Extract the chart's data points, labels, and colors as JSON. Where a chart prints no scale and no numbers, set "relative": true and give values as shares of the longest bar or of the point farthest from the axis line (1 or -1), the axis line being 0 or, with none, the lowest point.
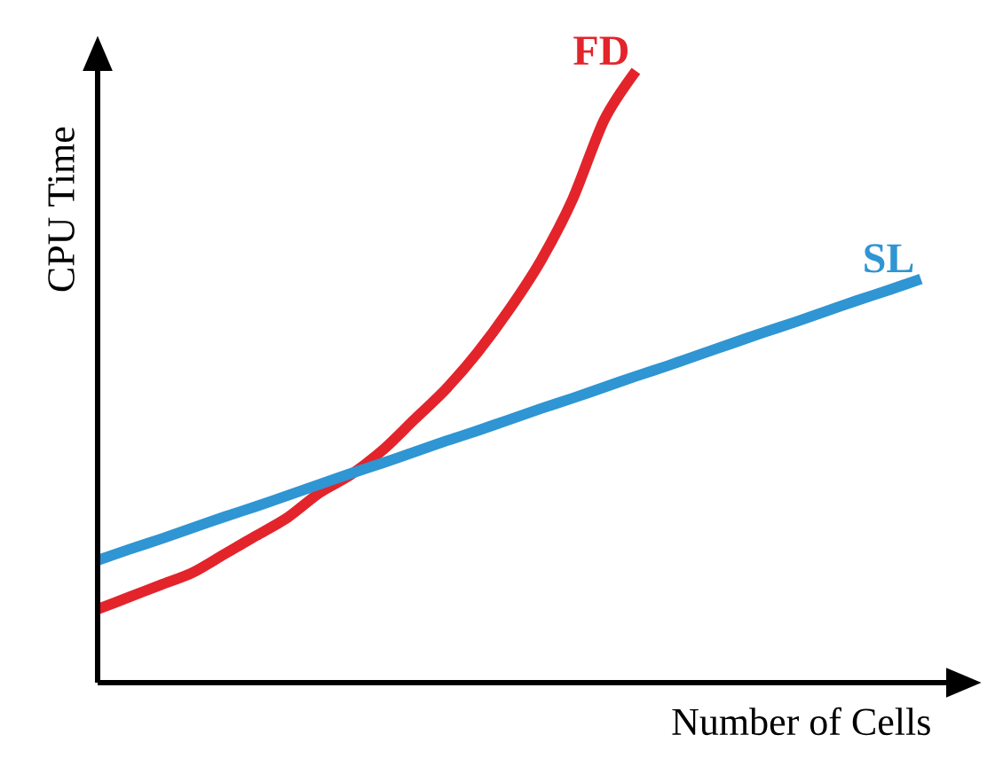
{
  "chart_data": {
    "type": "line",
    "relative": true,
    "xlabel": "Number of Cells",
    "ylabel": "CPU Time",
    "marker": "none",
    "line_style": "solid",
    "grid": false,
    "categories": [
      null,
      null,
      null,
      null,
      null,
      null,
      null,
      null,
      null,
      null,
      null,
      null,
      null,
      null,
      null,
      null,
      null,
      null,
      null,
      null,
      null,
      null,
      null,
      null,
      null,
      null,
      null
    ],
    "series": [
      {
        "name": "FD",
        "color": "#e3242b",
        "values": [
          0.12,
          0.14,
          0.16,
          0.18,
          0.21,
          0.24,
          0.27,
          0.31,
          0.34,
          0.38,
          0.43,
          0.48,
          0.54,
          0.61,
          0.69,
          0.79,
          0.92,
          1.0,
          null,
          null,
          null,
          null,
          null,
          null,
          null,
          null,
          null
        ]
      },
      {
        "name": "SL",
        "color": "#2f95d3",
        "values": [
          0.2,
          0.218,
          0.235,
          0.253,
          0.271,
          0.288,
          0.306,
          0.324,
          0.342,
          0.359,
          0.377,
          0.395,
          0.412,
          0.43,
          0.448,
          0.465,
          0.483,
          0.501,
          0.518,
          0.536,
          0.554,
          0.572,
          0.589,
          0.607,
          0.625,
          0.642,
          0.66
        ]
      }
    ]
  }
}
